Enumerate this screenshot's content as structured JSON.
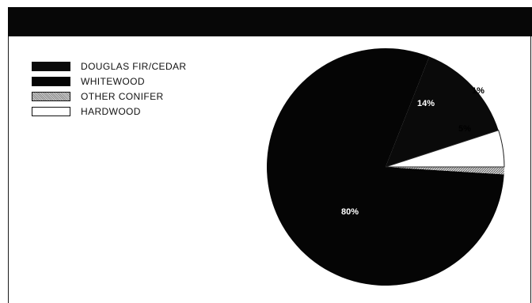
{
  "chart_data": {
    "type": "pie",
    "title": "",
    "slices": [
      {
        "name": "DOUGLAS FIR/CEDAR",
        "value": 14,
        "label": "14%",
        "color": "#0a0a0a",
        "label_color": "#ffffff",
        "pattern": "solid"
      },
      {
        "name": "WHITEWOOD",
        "value": 80,
        "label": "80%",
        "color": "#050505",
        "label_color": "#ffffff",
        "pattern": "solid"
      },
      {
        "name": "OTHER CONIFER",
        "value": 1,
        "label": "1%",
        "color": "#9a9a9a",
        "label_color": "#000000",
        "pattern": "speckle"
      },
      {
        "name": "HARDWOOD",
        "value": 5,
        "label": "5%",
        "color": "#ffffff",
        "label_color": "#000000",
        "pattern": "solid"
      }
    ],
    "legend_position": "top-left"
  },
  "legend": {
    "items": [
      {
        "label": "DOUGLAS FIR/CEDAR",
        "swatch": "solid-dark"
      },
      {
        "label": "WHITEWOOD",
        "swatch": "solid-dark"
      },
      {
        "label": "OTHER CONIFER",
        "swatch": "speckle-gray"
      },
      {
        "label": "HARDWOOD",
        "swatch": "white"
      }
    ]
  }
}
